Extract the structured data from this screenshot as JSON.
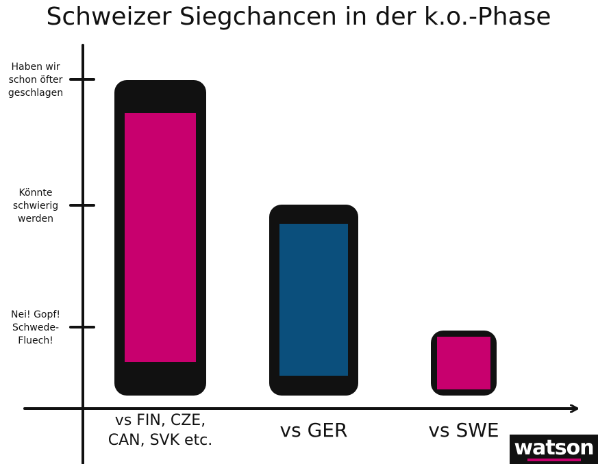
{
  "chart_data": {
    "type": "bar",
    "title": "Schweizer Siegchancen in der k.o.-Phase",
    "xlabel": "",
    "ylabel": "",
    "y_levels": [
      {
        "value": 1,
        "lines": [
          "Nei! Gopf!",
          "Schwede-",
          "Fluech!"
        ]
      },
      {
        "value": 2,
        "lines": [
          "Könnte",
          "schwierig",
          "werden"
        ]
      },
      {
        "value": 3,
        "lines": [
          "Haben wir",
          "schon öfter",
          "geschlagen"
        ]
      }
    ],
    "categories": [
      {
        "lines": [
          "vs FIN, CZE,",
          "CAN, SVK etc."
        ]
      },
      {
        "lines": [
          "vs GER"
        ]
      },
      {
        "lines": [
          "vs SWE"
        ]
      }
    ],
    "values": [
      3,
      2,
      1
    ],
    "ylim": [
      0,
      3
    ],
    "grid": false,
    "legend": "none"
  },
  "colors": {
    "outline": "#111111",
    "bars": [
      "#c8006e",
      "#0b4f7c",
      "#c8006e"
    ],
    "brand": "#c8006e"
  },
  "logo": {
    "text": "watson"
  }
}
